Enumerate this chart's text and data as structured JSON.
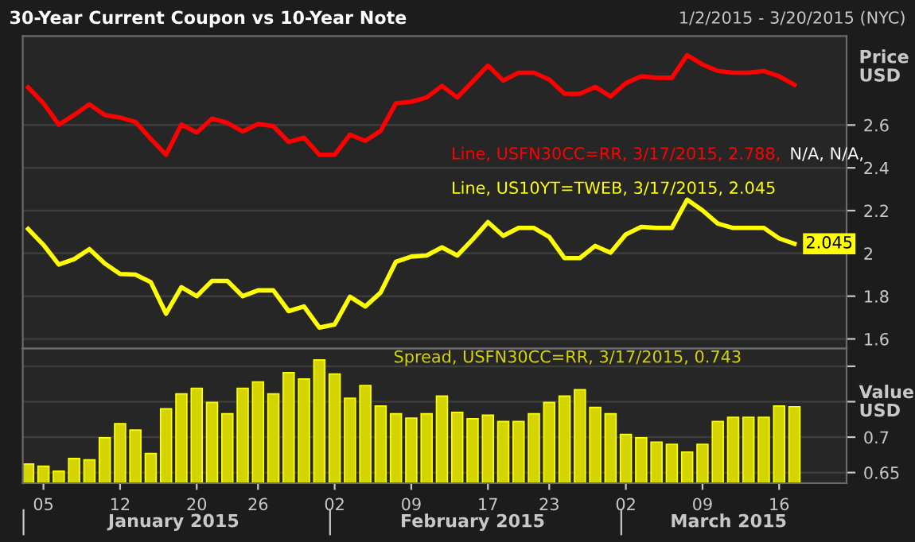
{
  "chart_data": [
    {
      "type": "line",
      "title": "30-Year Current Coupon vs 10-Year Note",
      "subtitle": "1/2/2015 - 3/20/2015 (NYC)",
      "ylabel": "Price USD",
      "categories": [
        null,
        "05",
        null,
        null,
        null,
        null,
        "12",
        null,
        null,
        null,
        null,
        "20",
        null,
        null,
        null,
        "26",
        null,
        null,
        null,
        null,
        "02",
        null,
        null,
        null,
        null,
        "09",
        null,
        null,
        null,
        null,
        "17",
        null,
        null,
        null,
        "23",
        null,
        null,
        null,
        null,
        "02",
        null,
        null,
        null,
        null,
        "09",
        null,
        null,
        null,
        null,
        "16",
        null
      ],
      "series": [
        {
          "name": "Line, USFN30CC=RR, 3/17/2015, 2.788,",
          "color": "#ff0000",
          "values": [
            2.776,
            2.702,
            2.602,
            2.647,
            2.697,
            2.647,
            2.635,
            2.615,
            2.536,
            2.461,
            2.602,
            2.565,
            2.63,
            2.61,
            2.57,
            2.605,
            2.595,
            2.521,
            2.541,
            2.461,
            2.461,
            2.555,
            2.526,
            2.573,
            2.702,
            2.709,
            2.729,
            2.783,
            2.729,
            2.803,
            2.878,
            2.808,
            2.845,
            2.845,
            2.813,
            2.746,
            2.746,
            2.778,
            2.734,
            2.796,
            2.828,
            2.821,
            2.821,
            2.927,
            2.883,
            2.853,
            2.845,
            2.845,
            2.853,
            2.828,
            2.788
          ]
        },
        {
          "name": "Line, US10YT=TWEB, 3/17/2015, 2.045",
          "color": "#ffff00",
          "values": [
            2.114,
            2.04,
            1.948,
            1.973,
            2.02,
            1.953,
            1.904,
            1.901,
            1.866,
            1.718,
            1.842,
            1.8,
            1.871,
            1.871,
            1.8,
            1.827,
            1.827,
            1.73,
            1.752,
            1.653,
            1.668,
            1.797,
            1.752,
            1.817,
            1.961,
            1.985,
            1.99,
            2.028,
            1.99,
            2.065,
            2.146,
            2.082,
            2.119,
            2.119,
            2.077,
            1.978,
            1.978,
            2.035,
            2.003,
            2.089,
            2.124,
            2.119,
            2.119,
            2.251,
            2.201,
            2.139,
            2.119,
            2.119,
            2.119,
            2.07,
            2.045
          ],
          "value_labels": [
            null,
            null,
            null,
            null,
            null,
            null,
            null,
            null,
            null,
            null,
            null,
            null,
            null,
            null,
            null,
            null,
            null,
            null,
            null,
            null,
            null,
            null,
            null,
            null,
            null,
            null,
            null,
            null,
            null,
            null,
            null,
            null,
            null,
            null,
            null,
            null,
            null,
            null,
            null,
            null,
            null,
            null,
            null,
            null,
            null,
            null,
            null,
            null,
            null,
            null,
            "2.045"
          ]
        }
      ],
      "annotations": [
        "N/A, N/A,"
      ],
      "ylim": [
        1.555,
        3.016
      ],
      "yticks": [
        1.6,
        1.8,
        2,
        2.2,
        2.4,
        2.6
      ],
      "grid": "y",
      "legend": "right",
      "tick_labels": "y",
      "marker": "none",
      "line_style": "solid"
    },
    {
      "type": "bar",
      "ylabel": "Value USD",
      "categories": [
        null,
        "05",
        null,
        null,
        null,
        null,
        "12",
        null,
        null,
        null,
        null,
        "20",
        null,
        null,
        null,
        "26",
        null,
        null,
        null,
        null,
        "02",
        null,
        null,
        null,
        null,
        "09",
        null,
        null,
        null,
        null,
        "17",
        null,
        null,
        null,
        "23",
        null,
        null,
        null,
        null,
        "02",
        null,
        null,
        null,
        null,
        "09",
        null,
        null,
        null,
        null,
        "16",
        null
      ],
      "series": [
        {
          "name": "Spread, USFN30CC=RR, 3/17/2015, 0.743",
          "color": "#d4d400",
          "values": [
            0.662,
            0.659,
            0.652,
            0.67,
            0.668,
            0.699,
            0.719,
            0.71,
            0.677,
            0.74,
            0.761,
            0.769,
            0.749,
            0.733,
            0.769,
            0.778,
            0.761,
            0.791,
            0.782,
            0.809,
            0.789,
            0.755,
            0.773,
            0.744,
            0.733,
            0.727,
            0.733,
            0.758,
            0.735,
            0.726,
            0.731,
            0.722,
            0.722,
            0.733,
            0.749,
            0.758,
            0.767,
            0.742,
            0.733,
            0.704,
            0.699,
            0.693,
            0.69,
            0.679,
            0.69,
            0.722,
            0.728,
            0.728,
            0.728,
            0.744,
            0.743
          ]
        }
      ],
      "annotations": [
        "January 2015",
        "February 2015",
        "March 2015"
      ],
      "ylim": [
        0.635,
        0.825
      ],
      "yticks": [
        0.65,
        0.7,
        {
          "value": 0.75,
          "label": null
        },
        {
          "value": 0.8,
          "label": null
        }
      ],
      "grid": "y",
      "legend": "top"
    }
  ]
}
